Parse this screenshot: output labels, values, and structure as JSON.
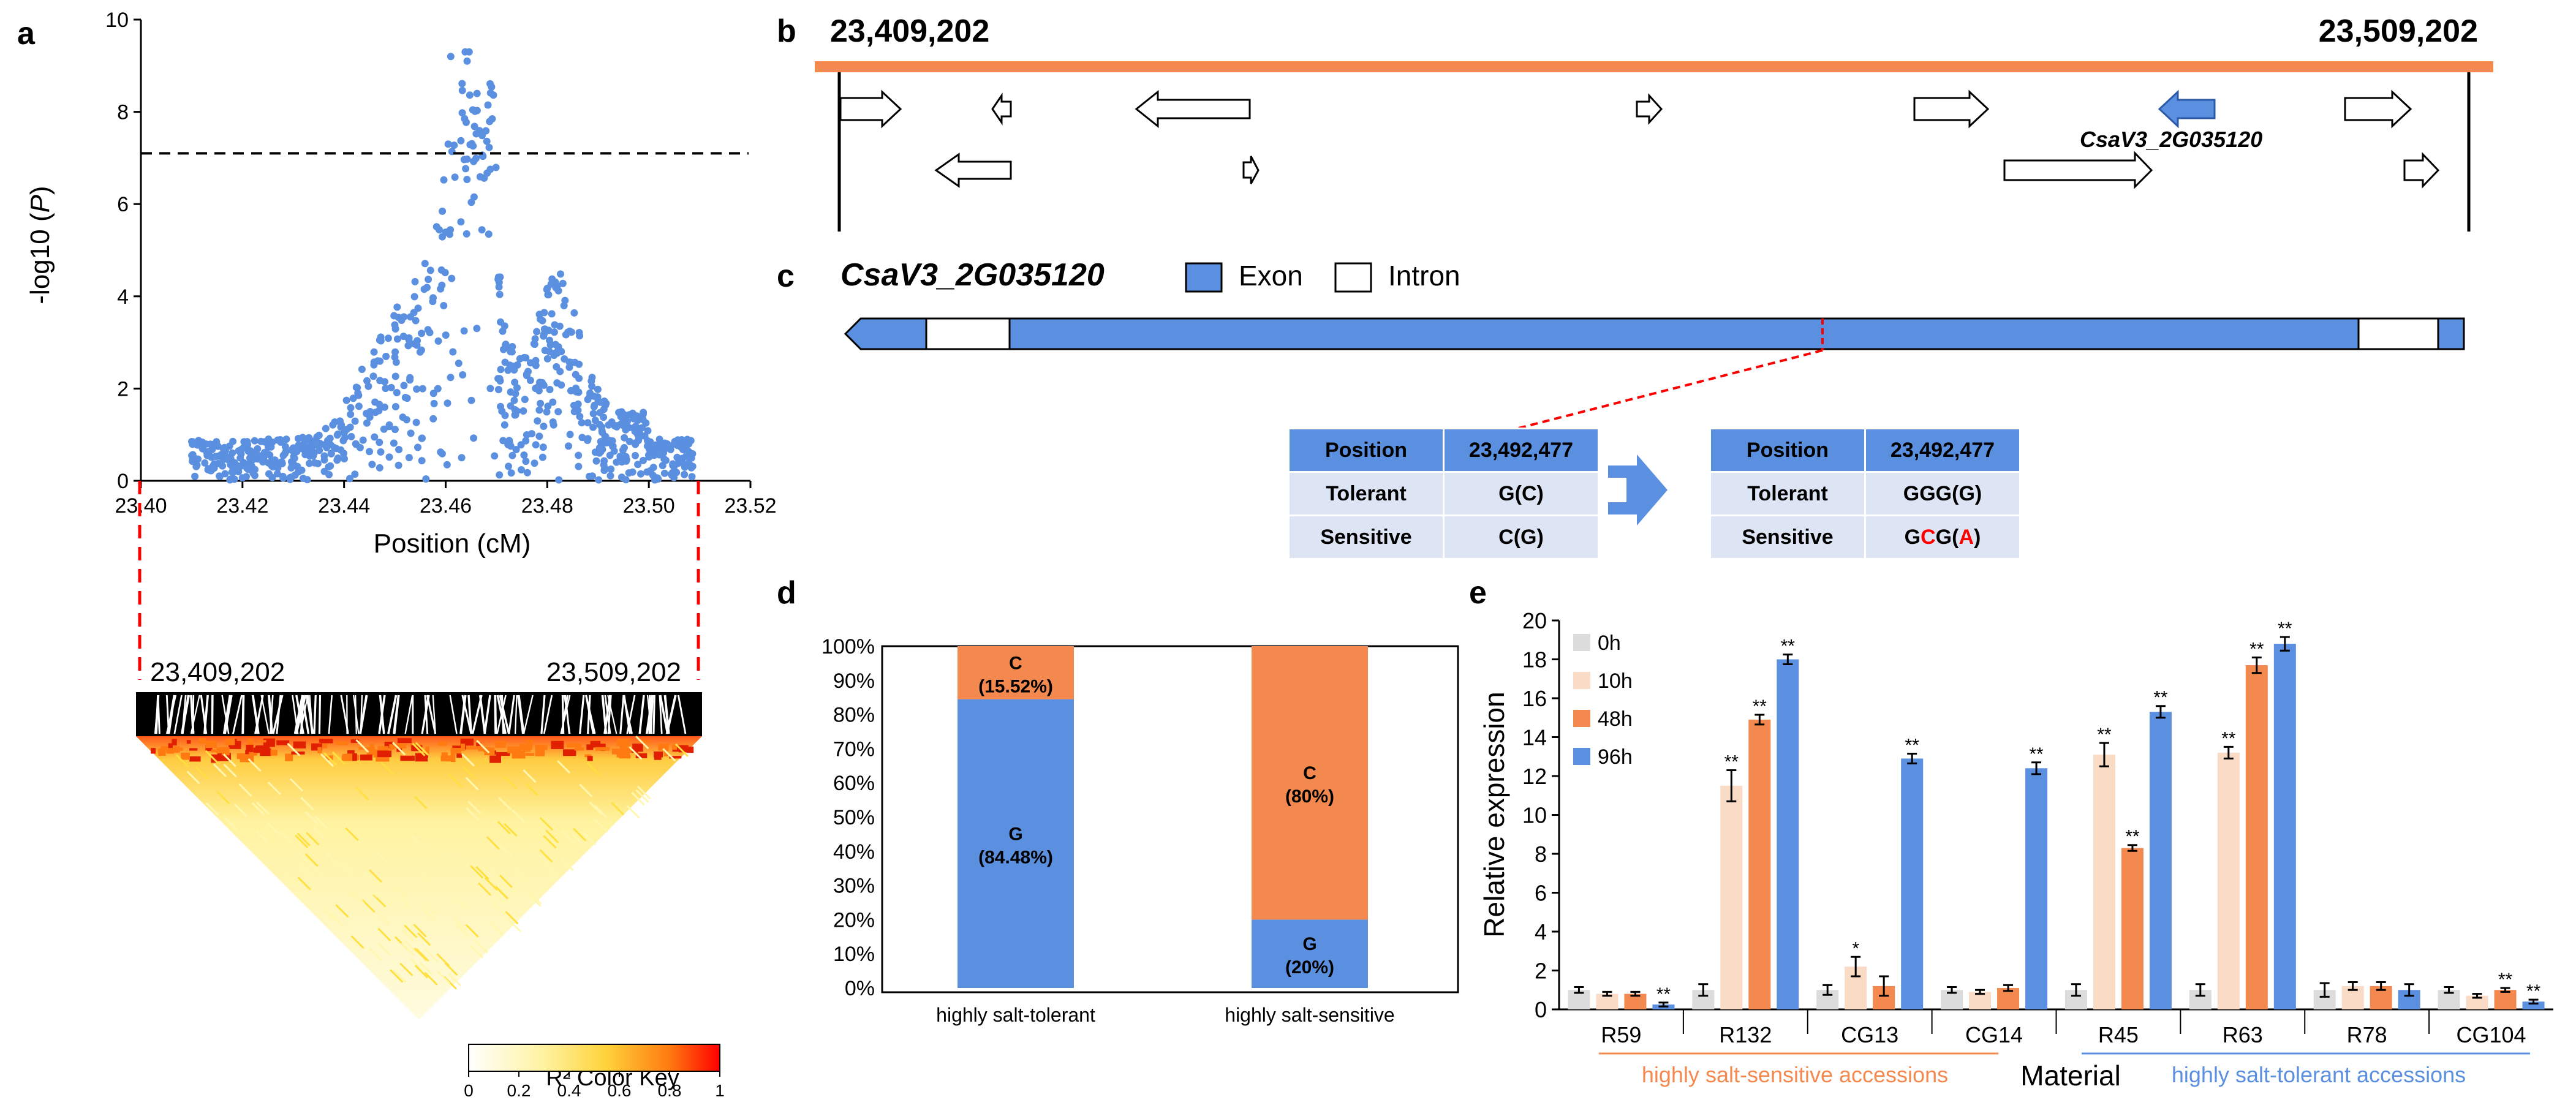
{
  "panels": {
    "a": "a",
    "b": "b",
    "c": "c",
    "d": "d",
    "e": "e"
  },
  "colors": {
    "blue": "#5b8fe0",
    "orange": "#f4894f",
    "light_orange": "#fadbc6",
    "grey": "#dcdcdc",
    "red_dash": "#ff0000"
  },
  "panel_a": {
    "ylabel": "-log10 (P)",
    "xlabel": "Position (cM)",
    "threshold": 7.1,
    "ld_start": "23,409,202",
    "ld_end": "23,509,202",
    "colorkey_title": "R² Color Key",
    "colorkey_ticks": [
      "0",
      "0.2",
      "0.4",
      "0.6",
      "0.8",
      "1"
    ]
  },
  "panel_b": {
    "start": "23,409,202",
    "end": "23,509,202",
    "gene_label": "CsaV3_2G035120"
  },
  "panel_c": {
    "gene": "CsaV3_2G035120",
    "legend": {
      "exon": "Exon",
      "intron": "Intron"
    },
    "table_left": [
      [
        "Position",
        "23,492,477"
      ],
      [
        "Tolerant",
        "G(C)"
      ],
      [
        "Sensitive",
        "C(G)"
      ]
    ],
    "table_right": [
      [
        "Position",
        "23,492,477"
      ],
      [
        "Tolerant",
        "GGG(G)"
      ],
      [
        "Sensitive",
        "GCG(A)"
      ]
    ]
  },
  "chart_data": [
    {
      "panel": "a",
      "type": "scatter",
      "xlabel": "Position (cM)",
      "ylabel": "-log10 (P)",
      "xlim": [
        23.4,
        23.52
      ],
      "ylim": [
        0,
        10
      ],
      "xticks": [
        "23.40",
        "23.42",
        "23.44",
        "23.46",
        "23.48",
        "23.50",
        "23.52"
      ],
      "yticks": [
        "0",
        "2",
        "4",
        "6",
        "8",
        "10"
      ],
      "threshold": 7.1,
      "peak_position": 23.465,
      "peak_value": 9.2,
      "note": "Manhattan-style association scatter, ~800 points; dense peak near 23.46-23.47 cM"
    },
    {
      "panel": "d",
      "type": "bar",
      "stacked": true,
      "categories": [
        "highly salt-tolerant",
        "highly salt-sensitive"
      ],
      "series": [
        {
          "name": "G",
          "values": [
            84.48,
            20
          ],
          "labels": [
            "G\n(84.48%)",
            "G\n(20%)"
          ]
        },
        {
          "name": "C",
          "values": [
            15.52,
            80
          ],
          "labels": [
            "C\n(15.52%)",
            "C\n(80%)"
          ]
        }
      ],
      "yticks": [
        "0%",
        "10%",
        "20%",
        "30%",
        "40%",
        "50%",
        "60%",
        "70%",
        "80%",
        "90%",
        "100%"
      ],
      "ylim": [
        0,
        100
      ]
    },
    {
      "panel": "e",
      "type": "bar",
      "title": "",
      "xlabel": "Material",
      "ylabel": "Relative expression",
      "ylim": [
        0,
        20
      ],
      "yticks": [
        "0",
        "2",
        "4",
        "6",
        "8",
        "10",
        "12",
        "14",
        "16",
        "18",
        "20"
      ],
      "categories": [
        "R59",
        "R132",
        "CG13",
        "CG14",
        "R45",
        "R63",
        "R78",
        "CG104"
      ],
      "groups": [
        {
          "label": "highly salt-sensitive accessions",
          "members": [
            "R59",
            "R132",
            "CG13",
            "CG14"
          ]
        },
        {
          "label": "highly salt-tolerant accessions",
          "members": [
            "R45",
            "R63",
            "R78",
            "CG104"
          ]
        }
      ],
      "series": [
        {
          "name": "0h",
          "values": [
            1.0,
            1.0,
            1.0,
            1.0,
            1.0,
            1.0,
            1.0,
            1.0
          ],
          "errors": [
            0.15,
            0.3,
            0.25,
            0.15,
            0.3,
            0.3,
            0.35,
            0.15
          ]
        },
        {
          "name": "10h",
          "values": [
            0.8,
            11.5,
            2.2,
            0.9,
            13.1,
            13.2,
            1.2,
            0.7
          ],
          "errors": [
            0.1,
            0.8,
            0.5,
            0.1,
            0.6,
            0.3,
            0.2,
            0.1
          ]
        },
        {
          "name": "48h",
          "values": [
            0.8,
            14.9,
            1.2,
            1.1,
            8.3,
            17.7,
            1.2,
            1.0
          ],
          "errors": [
            0.1,
            0.25,
            0.5,
            0.15,
            0.15,
            0.4,
            0.2,
            0.1
          ]
        },
        {
          "name": "96h",
          "values": [
            0.25,
            18.0,
            12.9,
            12.4,
            15.3,
            18.8,
            1.0,
            0.4
          ],
          "errors": [
            0.1,
            0.25,
            0.25,
            0.3,
            0.3,
            0.35,
            0.3,
            0.1
          ]
        }
      ],
      "significance": [
        [
          null,
          null,
          null,
          "**"
        ],
        [
          null,
          "**",
          "**",
          "**"
        ],
        [
          null,
          "*",
          null,
          "**"
        ],
        [
          null,
          null,
          null,
          "**"
        ],
        [
          null,
          "**",
          "**",
          "**"
        ],
        [
          null,
          "**",
          "**",
          "**"
        ],
        [
          null,
          null,
          null,
          null
        ],
        [
          null,
          null,
          "**",
          "**"
        ]
      ],
      "legend": [
        "0h",
        "10h",
        "48h",
        "96h"
      ]
    }
  ]
}
